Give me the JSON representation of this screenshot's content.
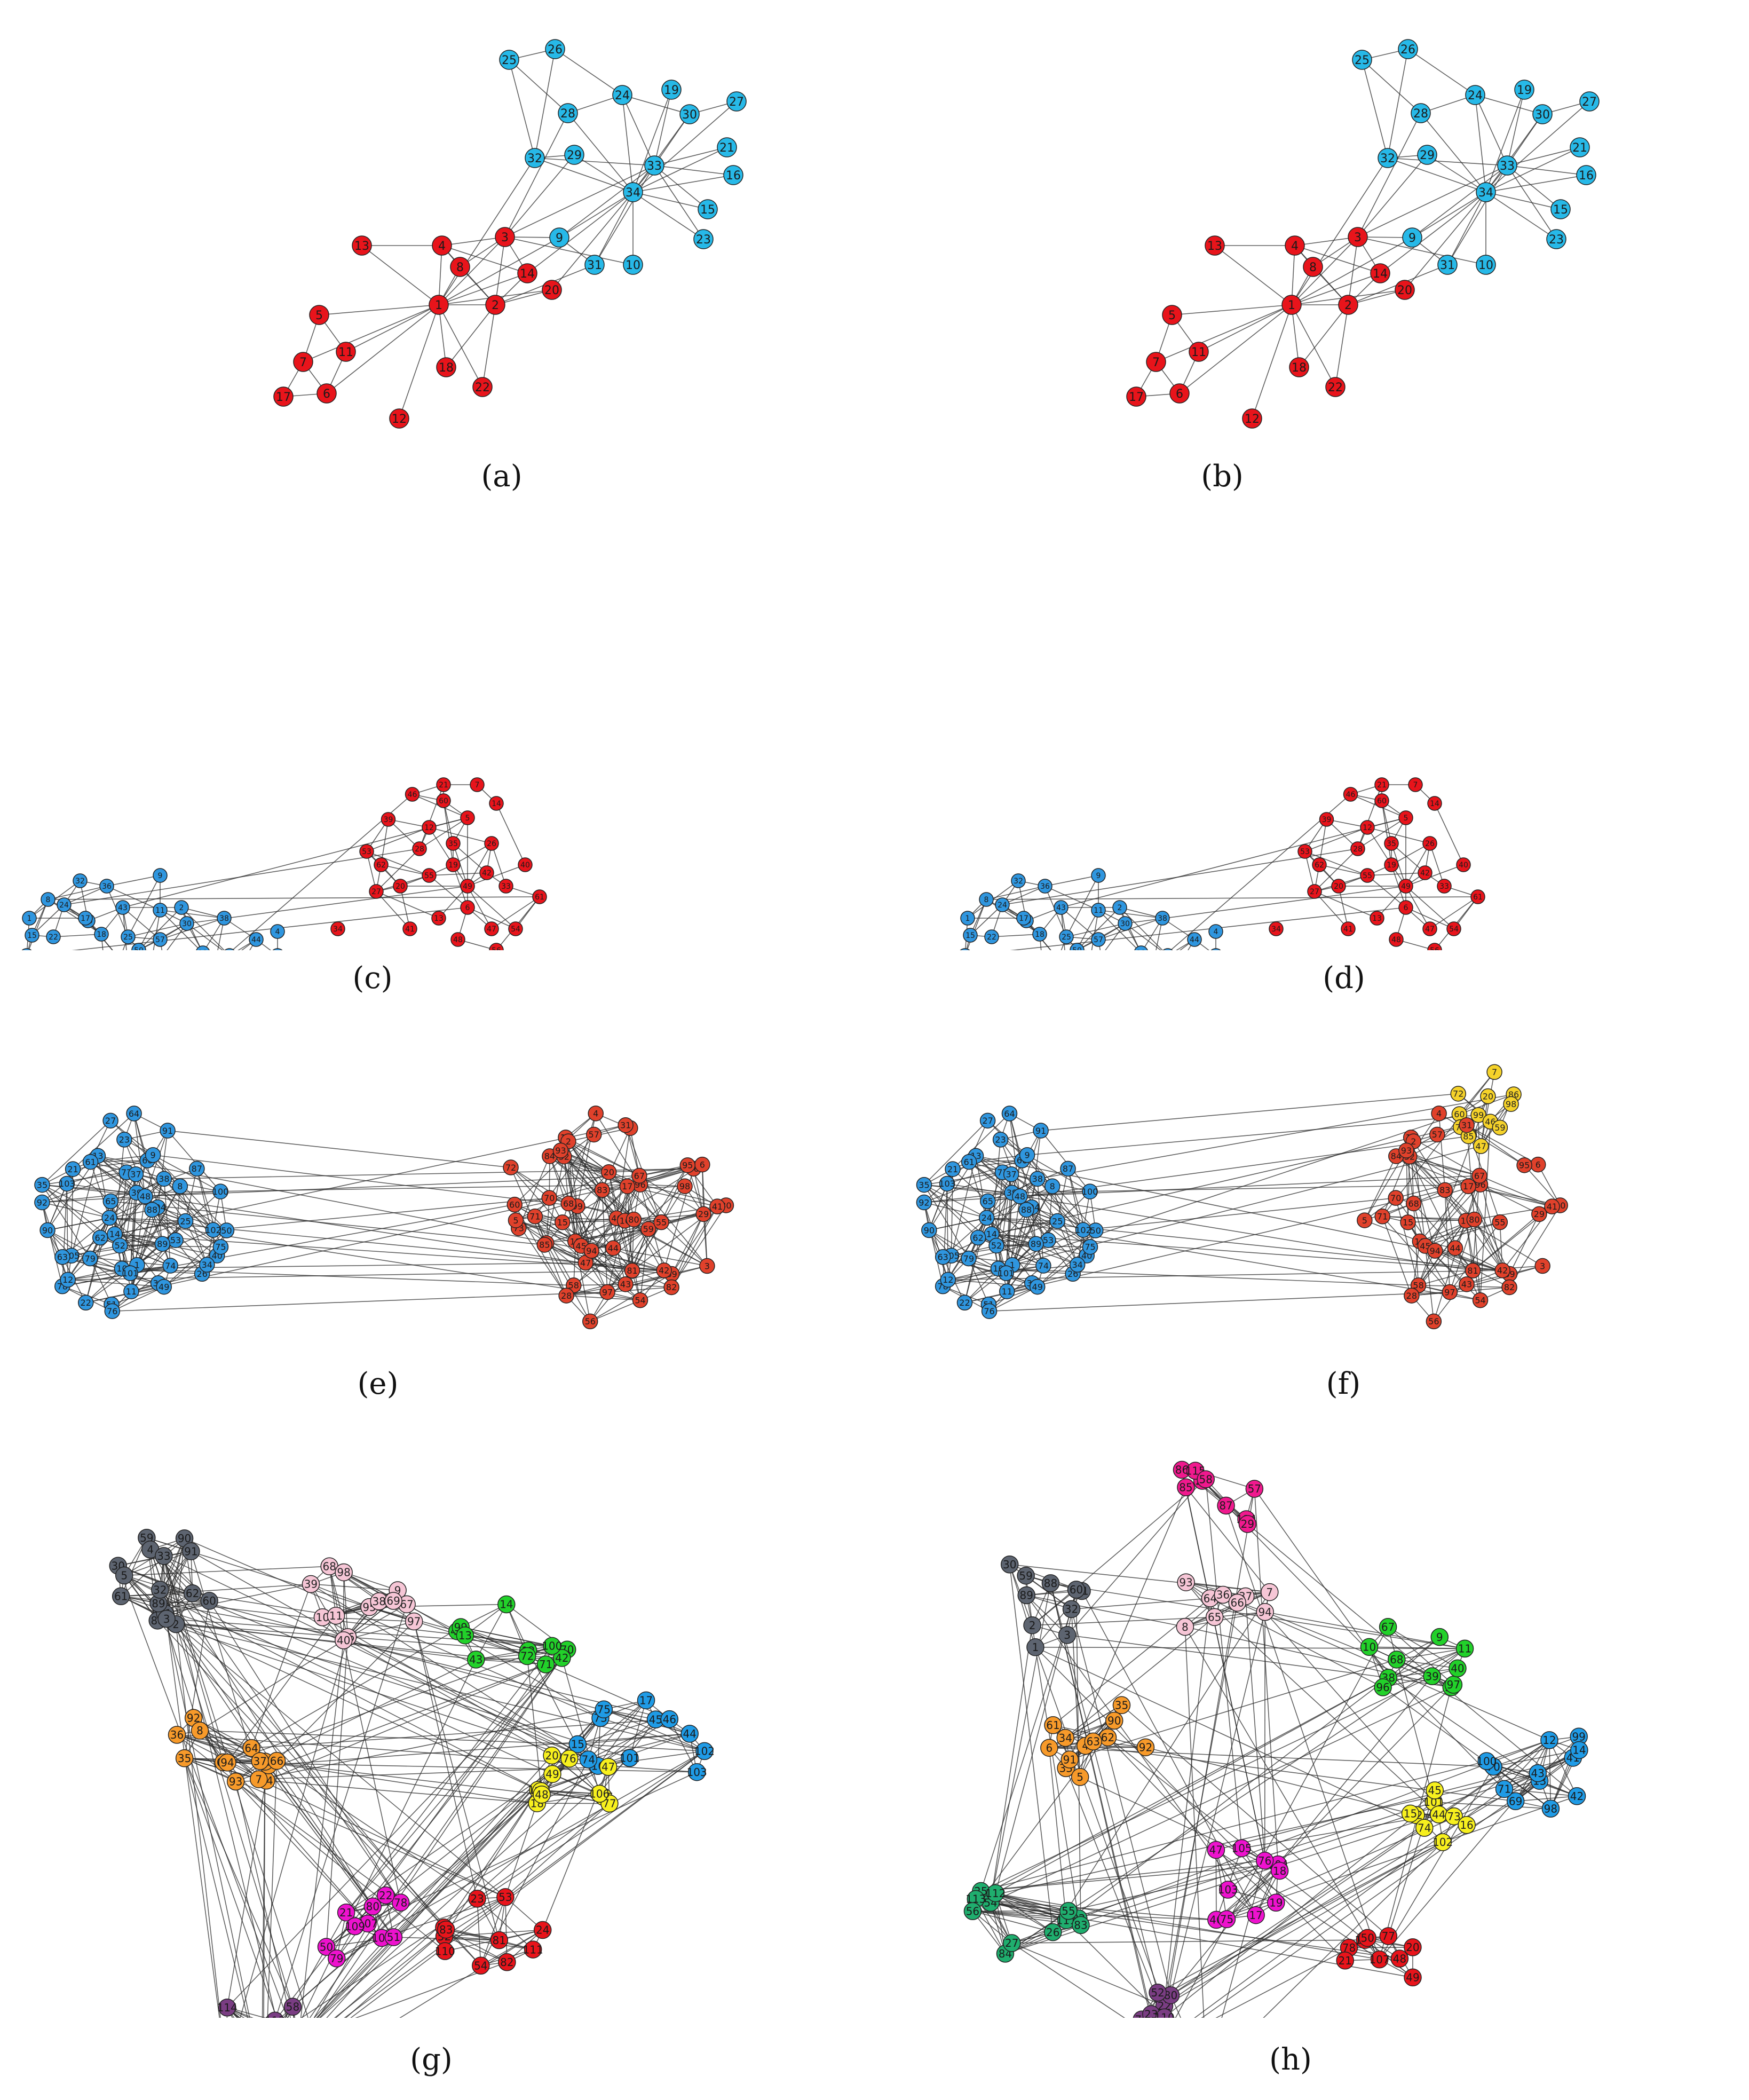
{
  "figure": {
    "panels": [
      {
        "caption": "(a)",
        "graph": "karate",
        "node_count": 34,
        "groups": [
          {
            "color": "#e8141b"
          },
          {
            "color": "#27b9e8"
          }
        ]
      },
      {
        "caption": "(b)",
        "graph": "karate",
        "node_count": 34,
        "groups": [
          {
            "color": "#e8141b"
          },
          {
            "color": "#27b9e8"
          }
        ]
      },
      {
        "caption": "(c)",
        "graph": "network-62",
        "node_count": 62,
        "groups": [
          {
            "color": "#e8141b"
          },
          {
            "color": "#2f96df"
          }
        ]
      },
      {
        "caption": "(d)",
        "graph": "network-62",
        "node_count": 62,
        "groups": [
          {
            "color": "#e8141b"
          },
          {
            "color": "#2f96df"
          }
        ]
      },
      {
        "caption": "(e)",
        "graph": "network-105",
        "node_count": 105,
        "groups": [
          {
            "color": "#2f96df"
          },
          {
            "color": "#e0412b"
          }
        ]
      },
      {
        "caption": "(f)",
        "graph": "network-105",
        "node_count": 105,
        "groups": [
          {
            "color": "#2f96df"
          },
          {
            "color": "#f5d22a"
          },
          {
            "color": "#e0412b"
          }
        ]
      },
      {
        "caption": "(g)",
        "graph": "network-115",
        "node_count": 115,
        "groups": [
          {
            "color": "#5d6470"
          },
          {
            "color": "#f79a2a"
          },
          {
            "color": "#f6c6d6"
          },
          {
            "color": "#22d12a"
          },
          {
            "color": "#1f9be6"
          },
          {
            "color": "#f7f01e"
          },
          {
            "color": "#ee12ce"
          },
          {
            "color": "#e8141b"
          },
          {
            "color": "#7a3d83"
          }
        ]
      },
      {
        "caption": "(h)",
        "graph": "network-115",
        "node_count": 115,
        "groups": [
          {
            "color": "#5d6470"
          },
          {
            "color": "#f79a2a"
          },
          {
            "color": "#f6c6d6"
          },
          {
            "color": "#22d12a"
          },
          {
            "color": "#1f9be6"
          },
          {
            "color": "#f7f01e"
          },
          {
            "color": "#ee12ce"
          },
          {
            "color": "#e8141b"
          },
          {
            "color": "#7a3d83"
          },
          {
            "color": "#1fae6e"
          },
          {
            "color": "#f0198e"
          }
        ]
      }
    ]
  }
}
